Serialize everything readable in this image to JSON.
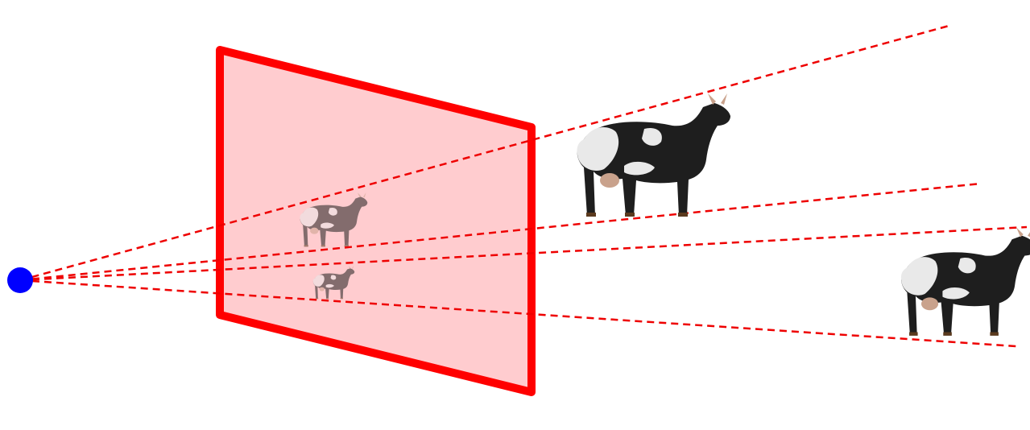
{
  "diagram": {
    "colors": {
      "background": "#ffffff",
      "eye": "#0000ff",
      "image_plane_fill": "#ffcccf",
      "image_plane_stroke": "#ff0000",
      "ray": "#ee0000",
      "cow_dark": "#1e1e1e",
      "cow_white": "#e9e9e9",
      "cow_udder": "#c9a28c",
      "projected_cow_tint": "#8a5a5a"
    },
    "elements": {
      "eye": "eye-point",
      "plane": "image-plane",
      "rays": "projection-ray",
      "near_cow": "cow-near",
      "far_cow": "cow-far",
      "near_projection": "cow-projection-near",
      "far_projection": "cow-projection-far"
    }
  }
}
